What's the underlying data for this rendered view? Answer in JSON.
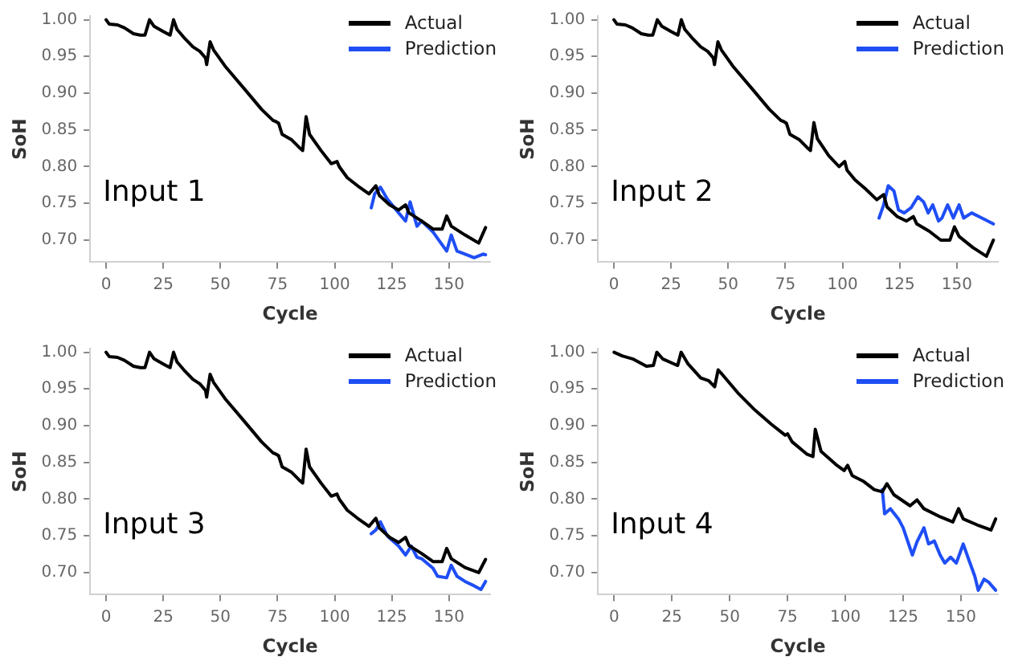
{
  "chart_data": [
    {
      "type": "line",
      "annotations": [
        "Input 1"
      ],
      "xlabel": "Cycle",
      "ylabel": "SoH",
      "legend": "top right",
      "xlim": [
        -7,
        168
      ],
      "ylim": [
        0.67,
        1.005
      ],
      "xticks": [
        0,
        25,
        50,
        75,
        100,
        125,
        150
      ],
      "yticks": [
        {
          "value": 0.7,
          "label": "0.70"
        },
        0.75,
        {
          "value": 0.8,
          "label": "0.80"
        },
        0.85,
        {
          "value": 0.9,
          "label": "0.90"
        },
        0.95,
        {
          "value": 1,
          "label": "1.00"
        }
      ],
      "series": [
        {
          "name": "Actual",
          "color": "#000000",
          "x": [
            0,
            1.4,
            5,
            8,
            12,
            15,
            17,
            19,
            21,
            25,
            28,
            29.5,
            31,
            34,
            38,
            41,
            43.5,
            44,
            45.5,
            47,
            52,
            61,
            68,
            73,
            74.5,
            75.5,
            77,
            81,
            84.5,
            86,
            87.5,
            89,
            94,
            98.5,
            101,
            102,
            105.5,
            110,
            115,
            118,
            119.5,
            124,
            128,
            131,
            132.5,
            138,
            143,
            147,
            149,
            151,
            157,
            163,
            166
          ],
          "values": [
            1.0,
            0.994,
            0.993,
            0.989,
            0.981,
            0.979,
            0.979,
            1.0,
            0.991,
            0.984,
            0.979,
            1.0,
            0.987,
            0.976,
            0.963,
            0.957,
            0.948,
            0.939,
            0.97,
            0.959,
            0.937,
            0.904,
            0.878,
            0.863,
            0.861,
            0.859,
            0.844,
            0.837,
            0.826,
            0.822,
            0.868,
            0.844,
            0.822,
            0.804,
            0.807,
            0.8,
            0.785,
            0.774,
            0.763,
            0.774,
            0.761,
            0.748,
            0.741,
            0.748,
            0.737,
            0.726,
            0.715,
            0.715,
            0.733,
            0.719,
            0.707,
            0.696,
            0.717
          ]
        },
        {
          "name": "Prediction",
          "color": "#1f4ef5",
          "x": [
            116,
            117.5,
            120,
            123,
            128,
            131,
            133,
            136,
            138,
            143,
            149,
            151,
            153.5,
            157,
            161,
            165,
            166
          ],
          "values": [
            0.744,
            0.763,
            0.772,
            0.756,
            0.737,
            0.726,
            0.752,
            0.719,
            0.726,
            0.711,
            0.685,
            0.707,
            0.685,
            0.681,
            0.676,
            0.681,
            0.68
          ]
        }
      ]
    },
    {
      "type": "line",
      "annotations": [
        "Input 2"
      ],
      "xlabel": "Cycle",
      "ylabel": "SoH",
      "legend": "top right",
      "xlim": [
        -7,
        168
      ],
      "ylim": [
        0.67,
        1.005
      ],
      "xticks": [
        0,
        25,
        50,
        75,
        100,
        125,
        150
      ],
      "yticks": [
        {
          "value": 0.7,
          "label": "0.70"
        },
        0.75,
        {
          "value": 0.8,
          "label": "0.80"
        },
        0.85,
        {
          "value": 0.9,
          "label": "0.90"
        },
        0.95,
        {
          "value": 1,
          "label": "1.00"
        }
      ],
      "series": [
        {
          "name": "Actual",
          "color": "#000000",
          "x": [
            0,
            1.4,
            5,
            8,
            12,
            15,
            17,
            19,
            21,
            25,
            28,
            29.5,
            31,
            34,
            38,
            41,
            43.5,
            44,
            45.5,
            47,
            52,
            61,
            68,
            73,
            74.5,
            75.5,
            77,
            81,
            84.5,
            86,
            87.5,
            89,
            94,
            98.5,
            101,
            102,
            105.5,
            110,
            115,
            118,
            119.5,
            124,
            128,
            131,
            132.5,
            138,
            143,
            147,
            149,
            151,
            157,
            163,
            166
          ],
          "values": [
            1.0,
            0.994,
            0.993,
            0.989,
            0.981,
            0.979,
            0.979,
            1.0,
            0.991,
            0.984,
            0.979,
            1.0,
            0.987,
            0.976,
            0.963,
            0.957,
            0.948,
            0.939,
            0.97,
            0.959,
            0.937,
            0.904,
            0.878,
            0.863,
            0.861,
            0.859,
            0.844,
            0.837,
            0.826,
            0.822,
            0.86,
            0.838,
            0.815,
            0.8,
            0.807,
            0.795,
            0.782,
            0.77,
            0.755,
            0.762,
            0.745,
            0.732,
            0.726,
            0.732,
            0.722,
            0.712,
            0.7,
            0.7,
            0.718,
            0.705,
            0.69,
            0.678,
            0.7
          ]
        },
        {
          "name": "Prediction",
          "color": "#1f4ef5",
          "x": [
            116,
            118,
            120,
            122.5,
            124.5,
            127,
            130,
            133,
            135.5,
            137.5,
            139.5,
            142,
            143.5,
            146,
            148.5,
            151,
            153,
            156.5,
            161,
            166
          ],
          "values": [
            0.73,
            0.748,
            0.774,
            0.767,
            0.741,
            0.737,
            0.744,
            0.759,
            0.752,
            0.737,
            0.748,
            0.726,
            0.73,
            0.748,
            0.73,
            0.748,
            0.73,
            0.737,
            0.73,
            0.722
          ]
        }
      ]
    },
    {
      "type": "line",
      "annotations": [
        "Input 3"
      ],
      "xlabel": "Cycle",
      "ylabel": "SoH",
      "legend": "top right",
      "xlim": [
        -7,
        168
      ],
      "ylim": [
        0.67,
        1.005
      ],
      "xticks": [
        0,
        25,
        50,
        75,
        100,
        125,
        150
      ],
      "yticks": [
        {
          "value": 0.7,
          "label": "0.70"
        },
        0.75,
        {
          "value": 0.8,
          "label": "0.80"
        },
        0.85,
        {
          "value": 0.9,
          "label": "0.90"
        },
        0.95,
        {
          "value": 1,
          "label": "1.00"
        }
      ],
      "series": [
        {
          "name": "Actual",
          "color": "#000000",
          "x": [
            0,
            1.4,
            5,
            8,
            12,
            15,
            17,
            19,
            21,
            25,
            28,
            29.5,
            31,
            34,
            38,
            41,
            43.5,
            44,
            45.5,
            47,
            52,
            61,
            68,
            73,
            74.5,
            75.5,
            77,
            81,
            84.5,
            86,
            87.5,
            89,
            94,
            98.5,
            101,
            102,
            105.5,
            110,
            115,
            118,
            119.5,
            124,
            128,
            131,
            132.5,
            138,
            143,
            147,
            149,
            151,
            157,
            163,
            166
          ],
          "values": [
            1.0,
            0.994,
            0.993,
            0.989,
            0.981,
            0.979,
            0.979,
            1.0,
            0.991,
            0.984,
            0.979,
            1.0,
            0.987,
            0.976,
            0.963,
            0.957,
            0.948,
            0.939,
            0.97,
            0.959,
            0.937,
            0.904,
            0.878,
            0.863,
            0.861,
            0.859,
            0.844,
            0.837,
            0.826,
            0.822,
            0.868,
            0.844,
            0.822,
            0.804,
            0.807,
            0.8,
            0.785,
            0.774,
            0.763,
            0.774,
            0.761,
            0.748,
            0.741,
            0.748,
            0.737,
            0.726,
            0.715,
            0.715,
            0.733,
            0.719,
            0.707,
            0.7,
            0.718
          ]
        },
        {
          "name": "Prediction",
          "color": "#1f4ef5",
          "x": [
            116,
            118,
            120,
            123,
            128,
            131,
            133.5,
            136,
            138,
            143,
            145,
            149,
            151,
            153.5,
            157,
            161,
            164,
            166
          ],
          "values": [
            0.753,
            0.758,
            0.769,
            0.75,
            0.736,
            0.724,
            0.736,
            0.721,
            0.719,
            0.706,
            0.695,
            0.693,
            0.71,
            0.695,
            0.688,
            0.682,
            0.677,
            0.688
          ]
        }
      ]
    },
    {
      "type": "line",
      "annotations": [
        "Input 4"
      ],
      "xlabel": "Cycle",
      "ylabel": "SoH",
      "legend": "top right",
      "xlim": [
        -7,
        166
      ],
      "ylim": [
        0.67,
        1.005
      ],
      "xticks": [
        0,
        25,
        50,
        75,
        100,
        125,
        150
      ],
      "yticks": [
        {
          "value": 0.7,
          "label": "0.70"
        },
        0.75,
        {
          "value": 0.8,
          "label": "0.80"
        },
        0.85,
        {
          "value": 0.9,
          "label": "0.90"
        },
        0.95,
        {
          "value": 1,
          "label": "1.00"
        }
      ],
      "series": [
        {
          "name": "Actual",
          "color": "#000000",
          "x": [
            0,
            3.5,
            8,
            14,
            17,
            18.5,
            21,
            26,
            27.5,
            29,
            32,
            37.5,
            41,
            43.5,
            45,
            47,
            54,
            61,
            68,
            74,
            75,
            77,
            83.5,
            86,
            87,
            89.5,
            96,
            99.5,
            101,
            103,
            108,
            112.5,
            116,
            118,
            121,
            128,
            131,
            134,
            141,
            146.5,
            149,
            151,
            157,
            163,
            165
          ],
          "values": [
            1.0,
            0.995,
            0.991,
            0.981,
            0.982,
            1.0,
            0.991,
            0.984,
            0.982,
            1.0,
            0.984,
            0.965,
            0.961,
            0.953,
            0.976,
            0.969,
            0.943,
            0.921,
            0.902,
            0.887,
            0.889,
            0.878,
            0.861,
            0.858,
            0.895,
            0.865,
            0.847,
            0.839,
            0.846,
            0.832,
            0.824,
            0.813,
            0.81,
            0.821,
            0.806,
            0.791,
            0.799,
            0.787,
            0.776,
            0.769,
            0.787,
            0.773,
            0.765,
            0.758,
            0.773
          ]
        },
        {
          "name": "Prediction",
          "color": "#1f4ef5",
          "x": [
            116,
            117,
            119.5,
            123,
            125,
            129,
            131,
            134,
            136,
            138.5,
            141,
            143,
            145.5,
            148,
            151,
            153,
            156,
            157.5,
            160,
            162,
            165
          ],
          "values": [
            0.813,
            0.78,
            0.787,
            0.773,
            0.761,
            0.724,
            0.742,
            0.761,
            0.739,
            0.743,
            0.724,
            0.713,
            0.721,
            0.713,
            0.739,
            0.721,
            0.695,
            0.676,
            0.691,
            0.687,
            0.676
          ]
        }
      ]
    }
  ]
}
